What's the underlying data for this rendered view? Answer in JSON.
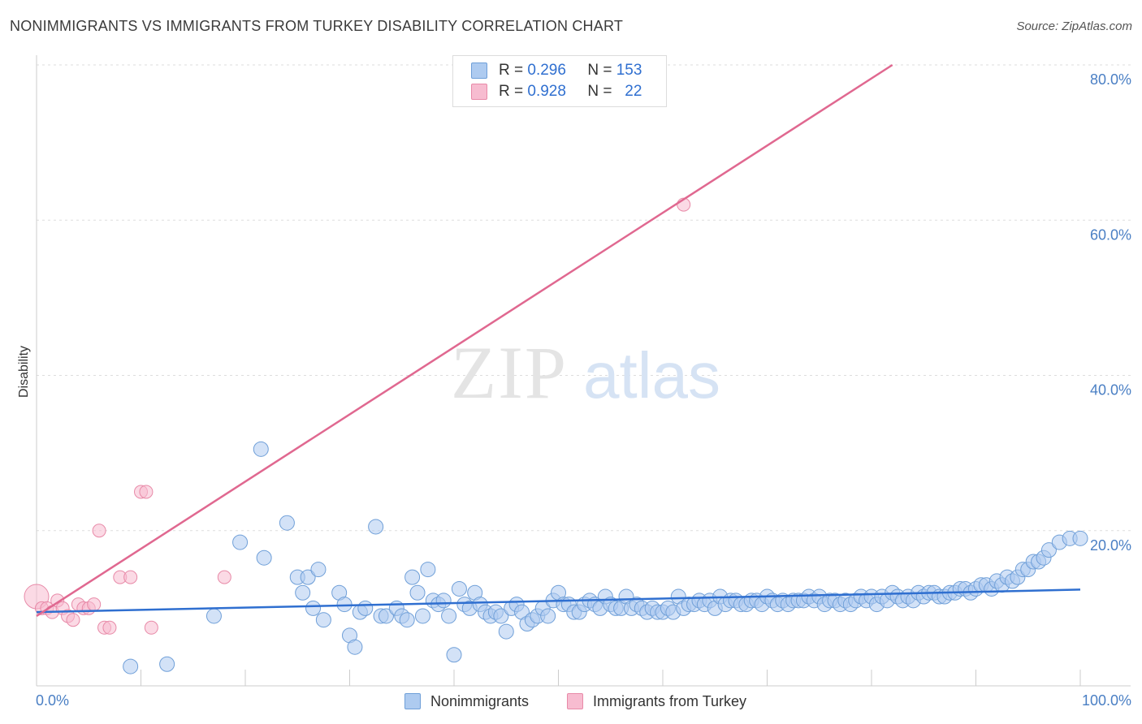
{
  "header": {
    "title": "NONIMMIGRANTS VS IMMIGRANTS FROM TURKEY DISABILITY CORRELATION CHART",
    "source": "Source: ZipAtlas.com"
  },
  "watermark": {
    "zip": "ZIP",
    "atlas": "atlas"
  },
  "legend_top": {
    "rows": [
      {
        "r_label": "R =",
        "r_value": "0.296",
        "n_label": "N =",
        "n_value": "153",
        "color": "#aecbf0"
      },
      {
        "r_label": "R =",
        "r_value": "0.928",
        "n_label": "N =",
        "n_value": "22",
        "color": "#f7bcd0"
      }
    ]
  },
  "legend_bottom": {
    "items": [
      {
        "label": "Nonimmigrants",
        "color": "#aecbf0"
      },
      {
        "label": "Immigrants from Turkey",
        "color": "#f7bcd0"
      }
    ]
  },
  "chart_data": {
    "type": "scatter",
    "title": "NONIMMIGRANTS VS IMMIGRANTS FROM TURKEY DISABILITY CORRELATION CHART",
    "xlabel": "",
    "ylabel": "Disability",
    "xlim": [
      0,
      100
    ],
    "ylim": [
      0,
      80
    ],
    "x_tick_labels": [
      "0.0%",
      "100.0%"
    ],
    "y_ticks": [
      20,
      40,
      60,
      80
    ],
    "y_tick_labels": [
      "20.0%",
      "40.0%",
      "60.0%",
      "80.0%"
    ],
    "grid": true,
    "legend_position": "top-center",
    "colors": {
      "blue_fill": "#aecbf0",
      "blue_stroke": "#6f9fd8",
      "blue_line": "#2f6fd0",
      "pink_fill": "#f7bcd0",
      "pink_stroke": "#e88aa8",
      "pink_line": "#e06890"
    },
    "series": [
      {
        "name": "Nonimmigrants",
        "color": "#aecbf0",
        "trend": {
          "x": [
            0,
            100
          ],
          "y": [
            9.5,
            12.4
          ]
        },
        "points": [
          [
            9,
            2.5
          ],
          [
            12.5,
            2.8
          ],
          [
            17,
            9
          ],
          [
            19.5,
            18.5
          ],
          [
            21.5,
            30.5
          ],
          [
            21.8,
            16.5
          ],
          [
            24,
            21
          ],
          [
            25,
            14
          ],
          [
            25.5,
            12
          ],
          [
            26,
            14
          ],
          [
            26.5,
            10
          ],
          [
            27,
            15
          ],
          [
            27.5,
            8.5
          ],
          [
            29,
            12
          ],
          [
            29.5,
            10.5
          ],
          [
            30,
            6.5
          ],
          [
            30.5,
            5
          ],
          [
            31,
            9.5
          ],
          [
            31.5,
            10
          ],
          [
            32.5,
            20.5
          ],
          [
            33,
            9
          ],
          [
            33.5,
            9
          ],
          [
            34.5,
            10
          ],
          [
            35,
            9
          ],
          [
            35.5,
            8.5
          ],
          [
            36,
            14
          ],
          [
            36.5,
            12
          ],
          [
            37,
            9
          ],
          [
            37.5,
            15
          ],
          [
            38,
            11
          ],
          [
            38.5,
            10.5
          ],
          [
            39,
            11
          ],
          [
            39.5,
            9
          ],
          [
            40,
            4
          ],
          [
            40.5,
            12.5
          ],
          [
            41,
            10.5
          ],
          [
            41.5,
            10
          ],
          [
            42,
            12
          ],
          [
            42.5,
            10.5
          ],
          [
            43,
            9.5
          ],
          [
            43.5,
            9
          ],
          [
            44,
            9.5
          ],
          [
            44.5,
            9
          ],
          [
            45,
            7
          ],
          [
            45.5,
            10
          ],
          [
            46,
            10.5
          ],
          [
            46.5,
            9.5
          ],
          [
            47,
            8
          ],
          [
            47.5,
            8.5
          ],
          [
            48,
            9
          ],
          [
            48.5,
            10
          ],
          [
            49,
            9
          ],
          [
            49.5,
            11
          ],
          [
            50,
            12
          ],
          [
            50.5,
            10.5
          ],
          [
            51,
            10.5
          ],
          [
            51.5,
            9.5
          ],
          [
            52,
            9.5
          ],
          [
            52.5,
            10.5
          ],
          [
            53,
            11
          ],
          [
            53.5,
            10.5
          ],
          [
            54,
            10
          ],
          [
            54.5,
            11.5
          ],
          [
            55,
            10.5
          ],
          [
            55.5,
            10
          ],
          [
            56,
            10
          ],
          [
            56.5,
            11.5
          ],
          [
            57,
            10
          ],
          [
            57.5,
            10.5
          ],
          [
            58,
            10
          ],
          [
            58.5,
            9.5
          ],
          [
            59,
            10
          ],
          [
            59.5,
            9.5
          ],
          [
            60,
            9.5
          ],
          [
            60.5,
            10
          ],
          [
            61,
            9.5
          ],
          [
            61.5,
            11.5
          ],
          [
            62,
            10
          ],
          [
            62.5,
            10.5
          ],
          [
            63,
            10.5
          ],
          [
            63.5,
            11
          ],
          [
            64,
            10.5
          ],
          [
            64.5,
            11
          ],
          [
            65,
            10
          ],
          [
            65.5,
            11.5
          ],
          [
            66,
            10.5
          ],
          [
            66.5,
            11
          ],
          [
            67,
            11
          ],
          [
            67.5,
            10.5
          ],
          [
            68,
            10.5
          ],
          [
            68.5,
            11
          ],
          [
            69,
            11
          ],
          [
            69.5,
            10.5
          ],
          [
            70,
            11.5
          ],
          [
            70.5,
            11
          ],
          [
            71,
            10.5
          ],
          [
            71.5,
            11
          ],
          [
            72,
            10.5
          ],
          [
            72.5,
            11
          ],
          [
            73,
            11
          ],
          [
            73.5,
            11
          ],
          [
            74,
            11.5
          ],
          [
            74.5,
            11
          ],
          [
            75,
            11.5
          ],
          [
            75.5,
            10.5
          ],
          [
            76,
            11
          ],
          [
            76.5,
            11
          ],
          [
            77,
            10.5
          ],
          [
            77.5,
            11
          ],
          [
            78,
            10.5
          ],
          [
            78.5,
            11
          ],
          [
            79,
            11.5
          ],
          [
            79.5,
            11
          ],
          [
            80,
            11.5
          ],
          [
            80.5,
            10.5
          ],
          [
            81,
            11.5
          ],
          [
            81.5,
            11
          ],
          [
            82,
            12
          ],
          [
            82.5,
            11.5
          ],
          [
            83,
            11
          ],
          [
            83.5,
            11.5
          ],
          [
            84,
            11
          ],
          [
            84.5,
            12
          ],
          [
            85,
            11.5
          ],
          [
            85.5,
            12
          ],
          [
            86,
            12
          ],
          [
            86.5,
            11.5
          ],
          [
            87,
            11.5
          ],
          [
            87.5,
            12
          ],
          [
            88,
            12
          ],
          [
            88.5,
            12.5
          ],
          [
            89,
            12.5
          ],
          [
            89.5,
            12
          ],
          [
            90,
            12.5
          ],
          [
            90.5,
            13
          ],
          [
            91,
            13
          ],
          [
            91.5,
            12.5
          ],
          [
            92,
            13.5
          ],
          [
            92.5,
            13
          ],
          [
            93,
            14
          ],
          [
            93.5,
            13.5
          ],
          [
            94,
            14
          ],
          [
            94.5,
            15
          ],
          [
            95,
            15
          ],
          [
            95.5,
            16
          ],
          [
            96,
            16
          ],
          [
            96.5,
            16.5
          ],
          [
            97,
            17.5
          ],
          [
            98,
            18.5
          ],
          [
            99,
            19
          ],
          [
            100,
            19
          ]
        ]
      },
      {
        "name": "Immigrants from Turkey",
        "color": "#f7bcd0",
        "trend": {
          "x": [
            0,
            82
          ],
          "y": [
            9.0,
            80.0
          ]
        },
        "points": [
          [
            0,
            11.5
          ],
          [
            0.5,
            10
          ],
          [
            1,
            10
          ],
          [
            1.5,
            9.5
          ],
          [
            2,
            11
          ],
          [
            2.5,
            10
          ],
          [
            3,
            9
          ],
          [
            3.5,
            8.5
          ],
          [
            4,
            10.5
          ],
          [
            4.5,
            10
          ],
          [
            5,
            10
          ],
          [
            5.5,
            10.5
          ],
          [
            6,
            20
          ],
          [
            6.5,
            7.5
          ],
          [
            7,
            7.5
          ],
          [
            8,
            14
          ],
          [
            9,
            14
          ],
          [
            10,
            25
          ],
          [
            10.5,
            25
          ],
          [
            11,
            7.5
          ],
          [
            18,
            14
          ],
          [
            62,
            62
          ]
        ]
      }
    ]
  }
}
